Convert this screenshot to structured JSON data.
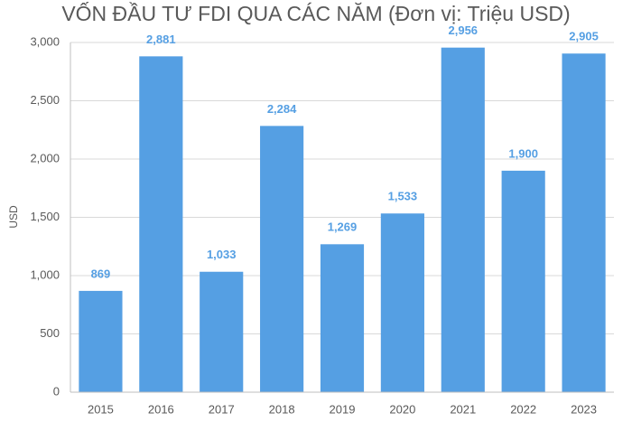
{
  "chart_data": {
    "type": "bar",
    "title": "VỐN ĐẦU TƯ FDI QUA CÁC NĂM (Đơn vị: Triệu USD)",
    "xlabel": "",
    "ylabel": "USD",
    "categories": [
      "2015",
      "2016",
      "2017",
      "2018",
      "2019",
      "2020",
      "2021",
      "2022",
      "2023"
    ],
    "values": [
      869,
      2881,
      1033,
      2284,
      1269,
      1533,
      2956,
      1900,
      2905
    ],
    "data_labels": [
      "869",
      "2,881",
      "1,033",
      "2,284",
      "1,269",
      "1,533",
      "2,956",
      "1,900",
      "2,905"
    ],
    "ylim": [
      0,
      3000
    ],
    "y_ticks": [
      0,
      500,
      1000,
      1500,
      2000,
      2500,
      3000
    ],
    "y_tick_labels": [
      "0",
      "500",
      "1,000",
      "1,500",
      "2,000",
      "2,500",
      "3,000"
    ],
    "grid": true,
    "legend": "none",
    "colors": {
      "bar": "#559fe3",
      "data_label": "#559fe3",
      "grid": "#d9d9d9",
      "axis": "#bfbfbf",
      "text": "#595959"
    }
  }
}
